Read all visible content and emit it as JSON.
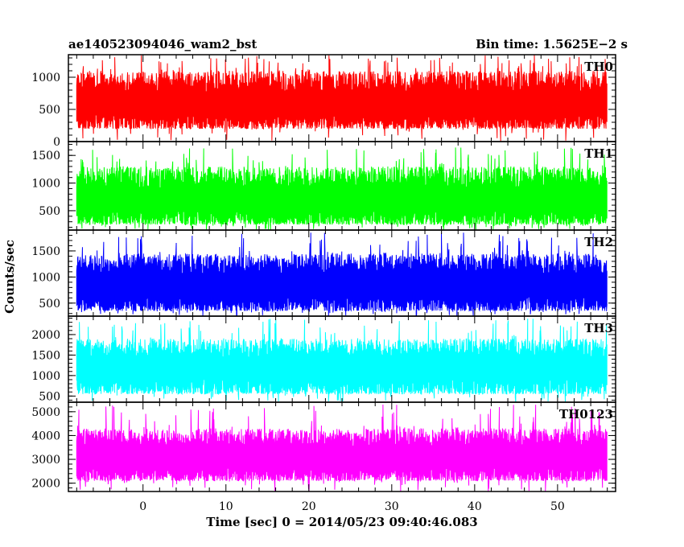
{
  "chart_data": {
    "type": "line",
    "title_left": "ae140523094046_wam2_bst",
    "title_right": "Bin time: 1.5625E−2 s",
    "xlabel": "Time [sec] 0 = 2014/05/23 09:40:46.083",
    "ylabel": "Counts/sec",
    "xlim": [
      -9,
      57
    ],
    "data_xrange": [
      -8,
      56
    ],
    "x_ticks": [
      0,
      10,
      20,
      30,
      40,
      50
    ],
    "x_tick_labels": [
      "0",
      "10",
      "20",
      "30",
      "40",
      "50"
    ],
    "grid": false,
    "panels": [
      {
        "name": "TH0",
        "color": "#ff0000",
        "ylim": [
          0,
          1350
        ],
        "y_ticks": [
          0,
          500,
          1000
        ],
        "y_tick_labels": [
          "0",
          "500",
          "1000"
        ],
        "mean": 600,
        "typical_min": 200,
        "typical_max": 1100,
        "peak_max": 1350
      },
      {
        "name": "TH1",
        "color": "#00ff00",
        "ylim": [
          150,
          1750
        ],
        "y_ticks": [
          500,
          1000,
          1500
        ],
        "y_tick_labels": [
          "500",
          "1000",
          "1500"
        ],
        "mean": 700,
        "typical_min": 250,
        "typical_max": 1300,
        "peak_max": 1650
      },
      {
        "name": "TH2",
        "color": "#0000ff",
        "ylim": [
          250,
          1900
        ],
        "y_ticks": [
          500,
          1000,
          1500
        ],
        "y_tick_labels": [
          "500",
          "1000",
          "1500"
        ],
        "mean": 850,
        "typical_min": 350,
        "typical_max": 1450,
        "peak_max": 1850
      },
      {
        "name": "TH3",
        "color": "#00ffff",
        "ylim": [
          350,
          2450
        ],
        "y_ticks": [
          500,
          1000,
          1500,
          2000
        ],
        "y_tick_labels": [
          "500",
          "1000",
          "1500",
          "2000"
        ],
        "mean": 1200,
        "typical_min": 550,
        "typical_max": 1900,
        "peak_max": 2400
      },
      {
        "name": "TH0123",
        "color": "#ff00ff",
        "ylim": [
          1650,
          5400
        ],
        "y_ticks": [
          2000,
          3000,
          4000,
          5000
        ],
        "y_tick_labels": [
          "2000",
          "3000",
          "4000",
          "5000"
        ],
        "mean": 3100,
        "typical_min": 2100,
        "typical_max": 4300,
        "peak_max": 5300
      }
    ]
  }
}
